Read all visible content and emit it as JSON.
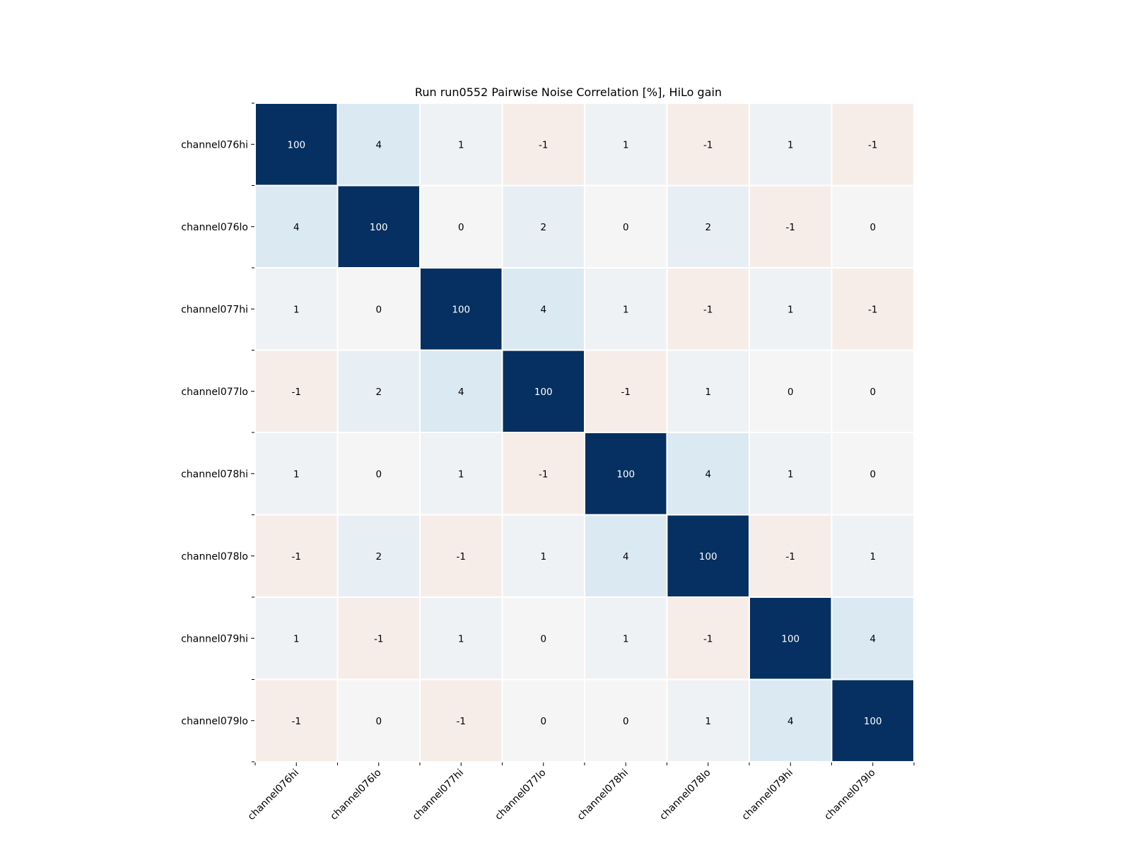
{
  "chart_data": {
    "type": "heatmap",
    "title": "Run run0552 Pairwise Noise Correlation [%], HiLo gain",
    "xlabel": "",
    "ylabel": "",
    "row_labels": [
      "channel076hi",
      "channel076lo",
      "channel077hi",
      "channel077lo",
      "channel078hi",
      "channel078lo",
      "channel079hi",
      "channel079lo"
    ],
    "col_labels": [
      "channel076hi",
      "channel076lo",
      "channel077hi",
      "channel077lo",
      "channel078hi",
      "channel078lo",
      "channel079hi",
      "channel079lo"
    ],
    "values": [
      [
        100,
        4,
        1,
        -1,
        1,
        -1,
        1,
        -1
      ],
      [
        4,
        100,
        0,
        2,
        0,
        2,
        -1,
        0
      ],
      [
        1,
        0,
        100,
        4,
        1,
        -1,
        1,
        -1
      ],
      [
        -1,
        2,
        4,
        100,
        -1,
        1,
        0,
        0
      ],
      [
        1,
        0,
        1,
        -1,
        100,
        4,
        1,
        0
      ],
      [
        -1,
        2,
        -1,
        1,
        4,
        100,
        -1,
        1
      ],
      [
        1,
        -1,
        1,
        0,
        1,
        -1,
        100,
        4
      ],
      [
        -1,
        0,
        -1,
        0,
        0,
        1,
        4,
        100
      ]
    ],
    "colormap": "RdBu diverging",
    "vmin": -100,
    "vmax": 100,
    "grid": false,
    "colors": {
      "max": "#053061",
      "zero": "#f5f5f5",
      "blue_light": "#dbe9f2",
      "red_light": "#f6ede9",
      "separator": "#ffffff",
      "text_dark": "#000000",
      "text_light": "#ffffff"
    }
  }
}
